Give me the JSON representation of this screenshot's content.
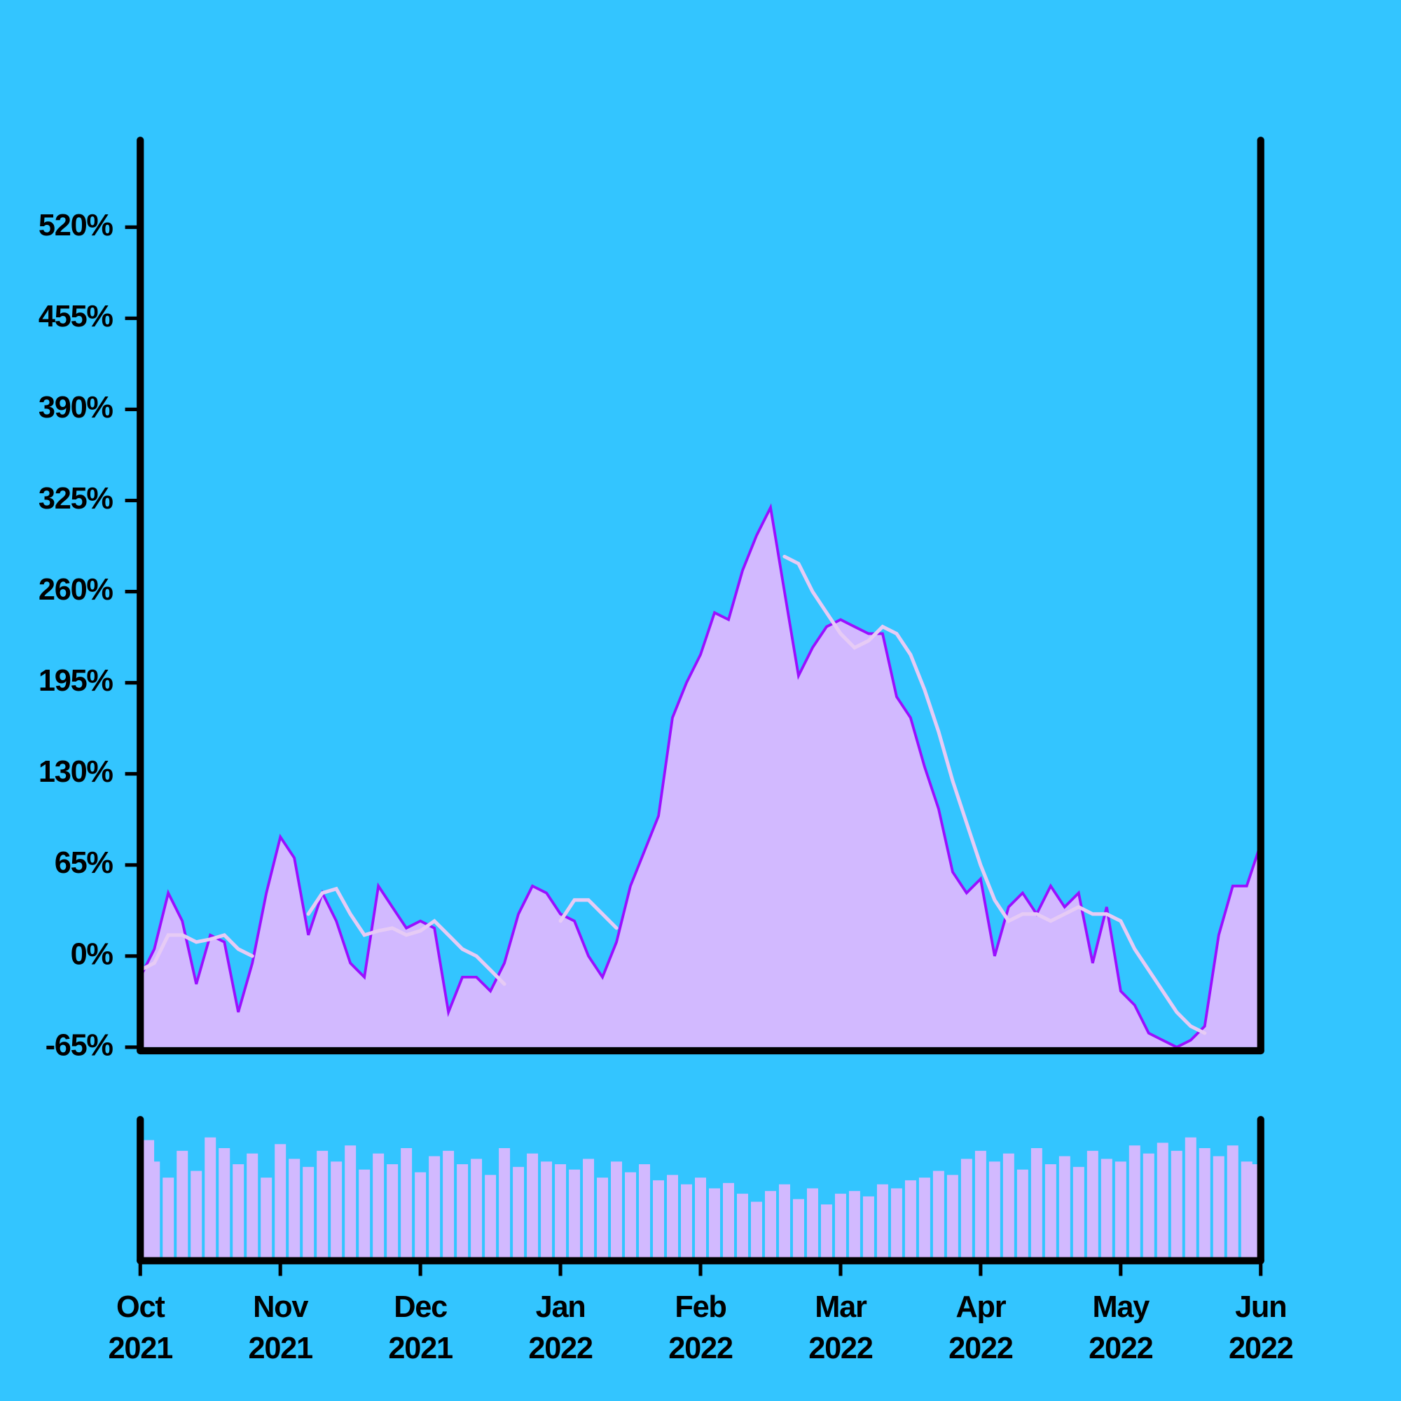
{
  "chart_data": {
    "type": "area",
    "categories": [
      "Oct 2021",
      null,
      null,
      null,
      null,
      null,
      null,
      null,
      null,
      null,
      "Nov 2021",
      null,
      null,
      null,
      null,
      null,
      null,
      null,
      null,
      null,
      "Dec 2021",
      null,
      null,
      null,
      null,
      null,
      null,
      null,
      null,
      null,
      "Jan 2022",
      null,
      null,
      null,
      null,
      null,
      null,
      null,
      null,
      null,
      "Feb 2022",
      null,
      null,
      null,
      null,
      null,
      null,
      null,
      null,
      null,
      "Mar 2022",
      null,
      null,
      null,
      null,
      null,
      null,
      null,
      null,
      null,
      "Apr 2022",
      null,
      null,
      null,
      null,
      null,
      null,
      null,
      null,
      null,
      "May 2022",
      null,
      null,
      null,
      null,
      null,
      null,
      null,
      null,
      null,
      "Jun 2022"
    ],
    "series": [
      {
        "color": "#9a10ff",
        "fill": "#d2b9ff",
        "values": [
          -15,
          5,
          45,
          25,
          -20,
          15,
          10,
          -40,
          -5,
          45,
          85,
          70,
          15,
          45,
          25,
          -5,
          -15,
          50,
          35,
          20,
          25,
          20,
          -40,
          -15,
          -15,
          -25,
          -5,
          30,
          50,
          45,
          30,
          25,
          0,
          -15,
          10,
          50,
          75,
          100,
          170,
          195,
          215,
          245,
          240,
          275,
          300,
          320,
          260,
          200,
          220,
          235,
          240,
          235,
          230,
          230,
          185,
          170,
          135,
          105,
          60,
          45,
          55,
          0,
          35,
          45,
          30,
          50,
          35,
          45,
          -5,
          35,
          -25,
          -35,
          -55,
          -60,
          -65,
          -60,
          -50,
          15,
          50,
          50,
          80
        ]
      },
      {
        "color": "#e6cbf5",
        "values": [
          -10,
          -5,
          15,
          15,
          10,
          12,
          15,
          5,
          0,
          null,
          null,
          null,
          30,
          45,
          48,
          30,
          15,
          18,
          20,
          15,
          18,
          25,
          15,
          5,
          0,
          -10,
          -20,
          null,
          null,
          null,
          25,
          40,
          40,
          30,
          20,
          null,
          null,
          null,
          null,
          null,
          null,
          null,
          null,
          null,
          null,
          null,
          285,
          280,
          260,
          245,
          230,
          220,
          225,
          235,
          230,
          215,
          190,
          160,
          125,
          95,
          65,
          40,
          25,
          30,
          30,
          25,
          30,
          35,
          30,
          30,
          25,
          5,
          -10,
          -25,
          -40,
          -50,
          -55,
          null,
          null,
          null,
          null
        ]
      }
    ],
    "ylim": [
      -65,
      582
    ],
    "yticks": [
      {
        "value": -65,
        "label": "-65%"
      },
      {
        "value": 0,
        "label": "0%"
      },
      {
        "value": 65,
        "label": "65%"
      },
      {
        "value": 130,
        "label": "130%"
      },
      {
        "value": 195,
        "label": "195%"
      },
      {
        "value": 260,
        "label": "260%"
      },
      {
        "value": 325,
        "label": "325%"
      },
      {
        "value": 390,
        "label": "390%"
      },
      {
        "value": 455,
        "label": "455%"
      },
      {
        "value": 520,
        "label": "520%"
      }
    ],
    "volume": {
      "color": "#d2b9ff",
      "ylim": [
        0,
        100
      ],
      "values": [
        88,
        72,
        60,
        80,
        65,
        90,
        82,
        70,
        78,
        60,
        85,
        74,
        68,
        80,
        72,
        84,
        66,
        78,
        70,
        82,
        64,
        76,
        80,
        70,
        74,
        62,
        82,
        68,
        78,
        72,
        70,
        66,
        74,
        60,
        72,
        64,
        70,
        58,
        62,
        55,
        60,
        52,
        56,
        48,
        42,
        50,
        55,
        44,
        52,
        40,
        48,
        50,
        46,
        55,
        52,
        58,
        60,
        65,
        62,
        74,
        80,
        72,
        78,
        66,
        82,
        70,
        76,
        68,
        80,
        74,
        72,
        84,
        78,
        86,
        80,
        90,
        82,
        76,
        84,
        72,
        70
      ]
    }
  }
}
